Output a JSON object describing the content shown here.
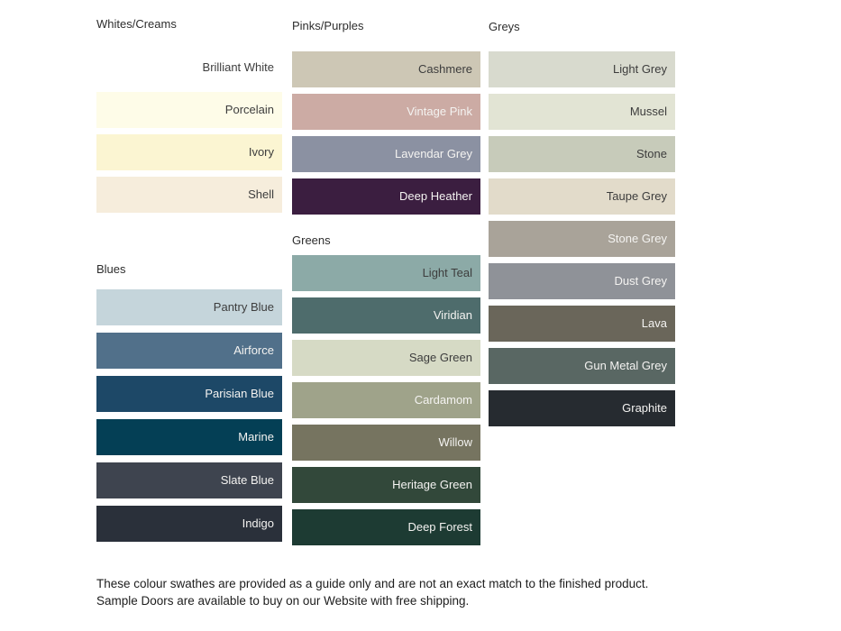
{
  "text_colors": {
    "dark": "#3d3d3d",
    "light": "#f4f3f1"
  },
  "groups": [
    {
      "id": "whites",
      "header": "Whites/Creams",
      "swatches": [
        {
          "label": "Brilliant White",
          "color": "#ffffff",
          "text": "dark"
        },
        {
          "label": "Porcelain",
          "color": "#fefce8",
          "text": "dark"
        },
        {
          "label": "Ivory",
          "color": "#fbf5d2",
          "text": "dark"
        },
        {
          "label": "Shell",
          "color": "#f6eddc",
          "text": "dark"
        }
      ]
    },
    {
      "id": "blues",
      "header": "Blues",
      "swatches": [
        {
          "label": "Pantry Blue",
          "color": "#c5d5db",
          "text": "dark"
        },
        {
          "label": "Airforce",
          "color": "#51708a",
          "text": "light"
        },
        {
          "label": "Parisian Blue",
          "color": "#1d4867",
          "text": "light"
        },
        {
          "label": "Marine",
          "color": "#043f55",
          "text": "light"
        },
        {
          "label": "Slate Blue",
          "color": "#3e444f",
          "text": "light"
        },
        {
          "label": "Indigo",
          "color": "#2a303a",
          "text": "light"
        }
      ]
    },
    {
      "id": "pinks",
      "header": "Pinks/Purples",
      "swatches": [
        {
          "label": "Cashmere",
          "color": "#cdc7b5",
          "text": "dark"
        },
        {
          "label": "Vintage Pink",
          "color": "#ccaba4",
          "text": "light"
        },
        {
          "label": "Lavendar Grey",
          "color": "#8b91a2",
          "text": "light"
        },
        {
          "label": "Deep Heather",
          "color": "#3b1e40",
          "text": "light"
        }
      ]
    },
    {
      "id": "greens",
      "header": "Greens",
      "swatches": [
        {
          "label": "Light Teal",
          "color": "#8caaa7",
          "text": "dark"
        },
        {
          "label": "Viridian",
          "color": "#4e6c6c",
          "text": "light"
        },
        {
          "label": "Sage Green",
          "color": "#d6dac5",
          "text": "dark"
        },
        {
          "label": "Cardamom",
          "color": "#9fa38a",
          "text": "light"
        },
        {
          "label": "Willow",
          "color": "#767460",
          "text": "light"
        },
        {
          "label": "Heritage Green",
          "color": "#32483a",
          "text": "light"
        },
        {
          "label": "Deep Forest",
          "color": "#1d3b33",
          "text": "light"
        }
      ]
    },
    {
      "id": "greys",
      "header": "Greys",
      "swatches": [
        {
          "label": "Light Grey",
          "color": "#d8dace",
          "text": "dark"
        },
        {
          "label": "Mussel",
          "color": "#e2e4d4",
          "text": "dark"
        },
        {
          "label": "Stone",
          "color": "#c7cbba",
          "text": "dark"
        },
        {
          "label": "Taupe Grey",
          "color": "#e2dbca",
          "text": "dark"
        },
        {
          "label": "Stone Grey",
          "color": "#a9a399",
          "text": "light"
        },
        {
          "label": "Dust Grey",
          "color": "#8f9298",
          "text": "light"
        },
        {
          "label": "Lava",
          "color": "#6a665a",
          "text": "light"
        },
        {
          "label": "Gun Metal Grey",
          "color": "#596763",
          "text": "light"
        },
        {
          "label": "Graphite",
          "color": "#262b30",
          "text": "light"
        }
      ]
    }
  ],
  "footnote": "These colour swathes are provided as a guide only and are not an exact match to the finished product.  Sample Doors are available to buy on our Website with free shipping."
}
